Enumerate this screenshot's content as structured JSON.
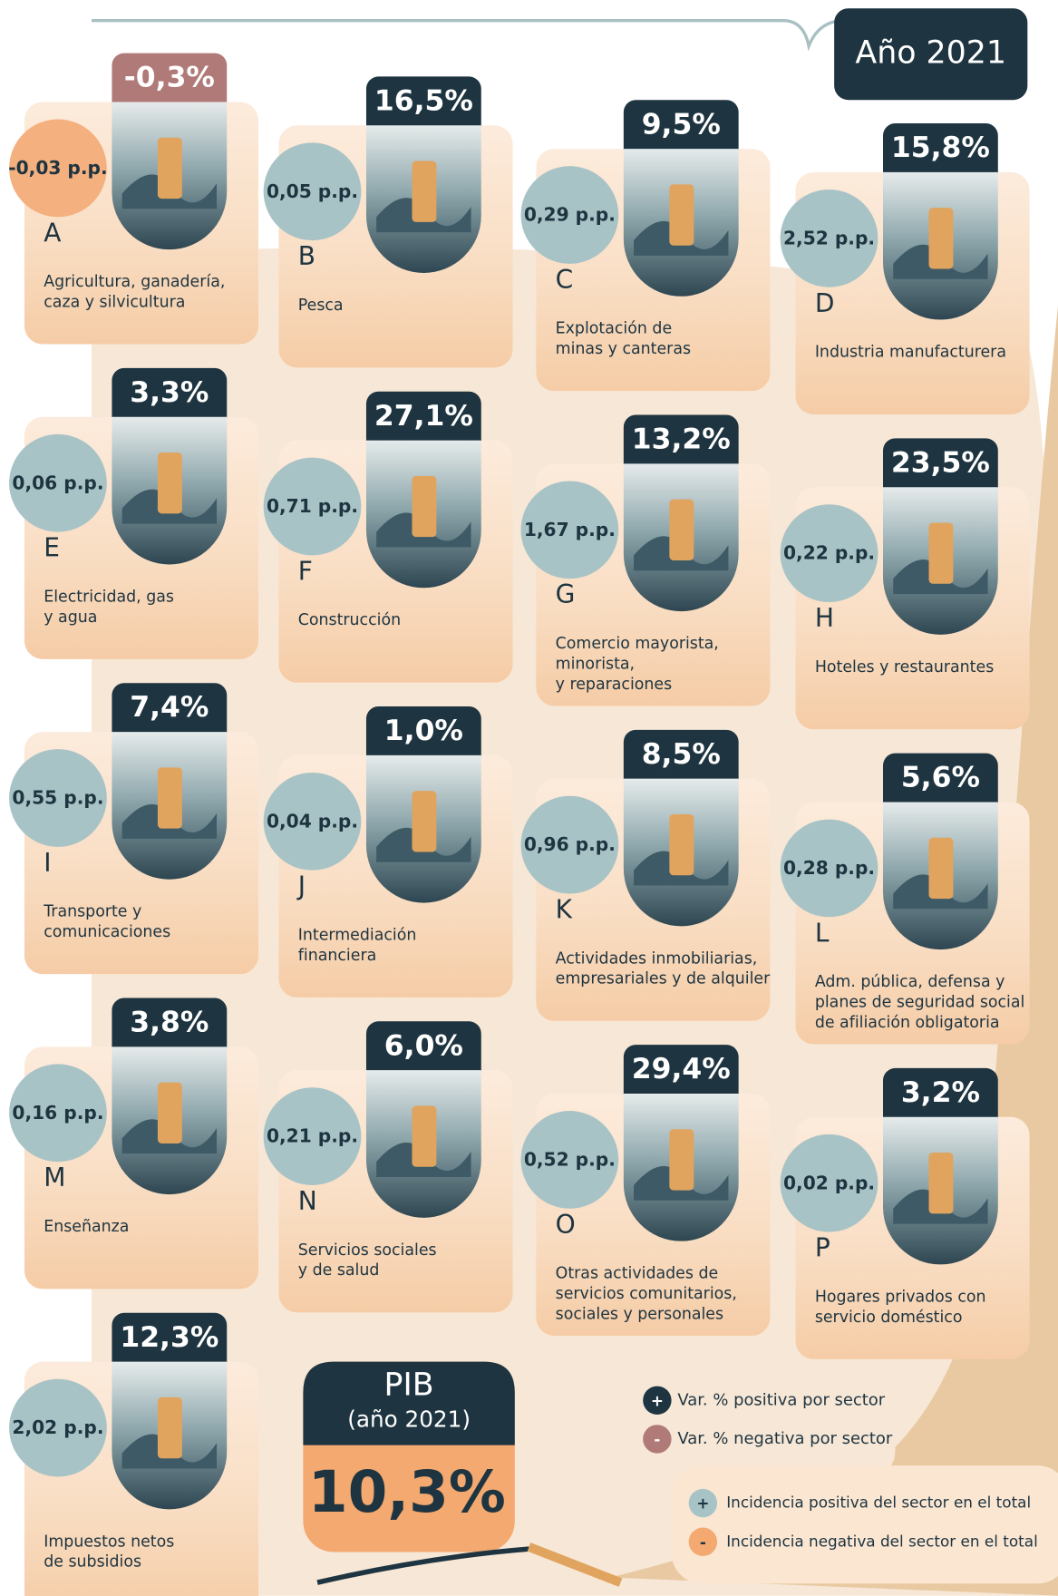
{
  "header": {
    "title": "Año 2021"
  },
  "sectors": [
    {
      "letter": "A",
      "name": [
        "Agricultura, ganadería,",
        "caza y silvicultura"
      ],
      "change": "-0,3%",
      "incidence": "-0,03 p.p."
    },
    {
      "letter": "B",
      "name": [
        "Pesca"
      ],
      "change": "16,5%",
      "incidence": "0,05 p.p."
    },
    {
      "letter": "C",
      "name": [
        "Explotación de",
        "minas y canteras"
      ],
      "change": "9,5%",
      "incidence": "0,29 p.p."
    },
    {
      "letter": "D",
      "name": [
        "Industria manufacturera"
      ],
      "change": "15,8%",
      "incidence": "2,52 p.p."
    },
    {
      "letter": "E",
      "name": [
        "Electricidad, gas",
        "y agua"
      ],
      "change": "3,3%",
      "incidence": "0,06 p.p."
    },
    {
      "letter": "F",
      "name": [
        "Construcción"
      ],
      "change": "27,1%",
      "incidence": "0,71 p.p."
    },
    {
      "letter": "G",
      "name": [
        "Comercio mayorista,",
        "minorista,",
        "y reparaciones"
      ],
      "change": "13,2%",
      "incidence": "1,67 p.p."
    },
    {
      "letter": "H",
      "name": [
        "Hoteles y restaurantes"
      ],
      "change": "23,5%",
      "incidence": "0,22 p.p."
    },
    {
      "letter": "I",
      "name": [
        "Transporte y",
        "comunicaciones"
      ],
      "change": "7,4%",
      "incidence": "0,55 p.p."
    },
    {
      "letter": "J",
      "name": [
        "Intermediación",
        "financiera"
      ],
      "change": "1,0%",
      "incidence": "0,04 p.p."
    },
    {
      "letter": "K",
      "name": [
        "Actividades inmobiliarias,",
        "empresariales y de alquiler"
      ],
      "change": "8,5%",
      "incidence": "0,96 p.p."
    },
    {
      "letter": "L",
      "name": [
        "Adm. pública, defensa y",
        "planes de seguridad social",
        "de afiliación obligatoria"
      ],
      "change": "5,6%",
      "incidence": "0,28 p.p."
    },
    {
      "letter": "M",
      "name": [
        "Enseñanza"
      ],
      "change": "3,8%",
      "incidence": "0,16 p.p."
    },
    {
      "letter": "N",
      "name": [
        "Servicios sociales",
        "y de salud"
      ],
      "change": "6,0%",
      "incidence": "0,21 p.p."
    },
    {
      "letter": "O",
      "name": [
        "Otras actividades de",
        "servicios comunitarios,",
        "sociales y personales"
      ],
      "change": "29,4%",
      "incidence": "0,52 p.p."
    },
    {
      "letter": "P",
      "name": [
        "Hogares privados con",
        "servicio doméstico"
      ],
      "change": "3,2%",
      "incidence": "0,02 p.p."
    },
    {
      "name": [
        "Impuestos netos",
        "de subsidios"
      ],
      "change": "12,3%",
      "incidence": "2,02 p.p."
    }
  ],
  "total": {
    "label": "PIB",
    "sublabel": "(año 2021)",
    "value": "10,3%"
  },
  "legend_change": [
    {
      "symbol": "+",
      "text": "Var. % positiva por sector"
    },
    {
      "symbol": "-",
      "text": "Var. % negativa por sector"
    }
  ],
  "legend_incidence": [
    {
      "symbol": "+",
      "text": "Incidencia positiva del sector en el total"
    },
    {
      "symbol": "-",
      "text": "Incidencia negativa del sector en el total"
    }
  ]
}
